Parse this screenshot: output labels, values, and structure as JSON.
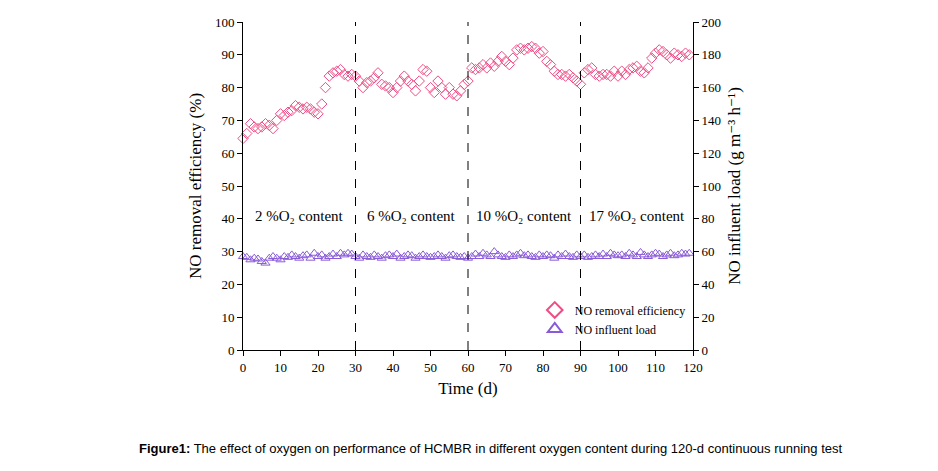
{
  "chart_data": {
    "type": "scatter",
    "caption": {
      "label": "Figure1:",
      "text": "The effect of oxygen on performance of HCMBR in different oxygen content during 120-d continuous running test"
    },
    "x_label": "Time (d)",
    "y_label": "NO removal efficiency (%)",
    "y2_label": "NO influent load (g m⁻³ h⁻¹)",
    "x": [
      0,
      1,
      2,
      3,
      4,
      5,
      6,
      7,
      8,
      9,
      10,
      11,
      12,
      13,
      14,
      15,
      16,
      17,
      18,
      19,
      20,
      21,
      22,
      23,
      24,
      25,
      26,
      27,
      28,
      29,
      30,
      31,
      32,
      33,
      34,
      35,
      36,
      37,
      38,
      39,
      40,
      41,
      42,
      43,
      44,
      45,
      46,
      47,
      48,
      49,
      50,
      51,
      52,
      53,
      54,
      55,
      56,
      57,
      58,
      59,
      60,
      61,
      62,
      63,
      64,
      65,
      66,
      67,
      68,
      69,
      70,
      71,
      72,
      73,
      74,
      75,
      76,
      77,
      78,
      79,
      80,
      81,
      82,
      83,
      84,
      85,
      86,
      87,
      88,
      89,
      90,
      91,
      92,
      93,
      94,
      95,
      96,
      97,
      98,
      99,
      100,
      101,
      102,
      103,
      104,
      105,
      106,
      107,
      108,
      109,
      110,
      111,
      112,
      113,
      114,
      115,
      116,
      117,
      118,
      119
    ],
    "series": [
      {
        "name": "NO removal efficiency",
        "color": "#ee4d86",
        "marker": "diamond-open",
        "axis": "y",
        "values": [
          64.5,
          66,
          69,
          68,
          67.5,
          68,
          69,
          68.5,
          67.5,
          70,
          72,
          71.5,
          72.5,
          73,
          74.5,
          74,
          73.5,
          74,
          73.5,
          72.5,
          72,
          75,
          80,
          83.5,
          84.5,
          85,
          85.5,
          84,
          83.5,
          84,
          83.5,
          82,
          80,
          81.5,
          82,
          83,
          84.5,
          81,
          80.5,
          80,
          78.5,
          80,
          82,
          83.5,
          82,
          81,
          79,
          82,
          85.5,
          85,
          80,
          78.5,
          82,
          80,
          78,
          80,
          78,
          77.5,
          79,
          81,
          82,
          86,
          85.5,
          86,
          87,
          86,
          87.5,
          86.5,
          88,
          89.5,
          88,
          87,
          89,
          91.5,
          92,
          91.5,
          92,
          92.5,
          92,
          90.5,
          91,
          88,
          87,
          85,
          84,
          84,
          83.5,
          84,
          83,
          82,
          81,
          84.5,
          85.5,
          86,
          84,
          83.5,
          84,
          84,
          83.5,
          85,
          83.5,
          85,
          84,
          85.5,
          86,
          86.5,
          85,
          84.5,
          86,
          89,
          90.5,
          91.5,
          91,
          90,
          89,
          90.5,
          90,
          89.5,
          90.5,
          90
        ]
      },
      {
        "name": "NO influent load",
        "color": "#8a5ad8",
        "marker": "triangle-up-open",
        "axis": "y2",
        "values": [
          57,
          56.5,
          55,
          56,
          55.5,
          54,
          53,
          56,
          57,
          56,
          55,
          57,
          56.5,
          58,
          57,
          56,
          57.5,
          58,
          56,
          59,
          57,
          58,
          56,
          57,
          58.5,
          57,
          59,
          58,
          59,
          58.5,
          57,
          56,
          58,
          57,
          56.5,
          58,
          57,
          56,
          57.5,
          58,
          57,
          58.5,
          56,
          57,
          58,
          57.5,
          56,
          57,
          58,
          57,
          56.5,
          57,
          58,
          57,
          56,
          57.5,
          58,
          57,
          56.5,
          57,
          56,
          57,
          58.5,
          57,
          59,
          58,
          57,
          60,
          58,
          57,
          56.5,
          58,
          57,
          58,
          59,
          57.5,
          58,
          57,
          56.5,
          58,
          57,
          58,
          57.5,
          56,
          58,
          57,
          58.5,
          57,
          56.5,
          58,
          57,
          58,
          56.5,
          57,
          58,
          57,
          58.5,
          57,
          59,
          58,
          57.5,
          58,
          57,
          59,
          58,
          57,
          59.5,
          58,
          57,
          58,
          59,
          58.5,
          57,
          58,
          59,
          57.5,
          58,
          59,
          58.5,
          59
        ]
      }
    ],
    "xlim": [
      0,
      120
    ],
    "xticks": [
      0,
      10,
      20,
      30,
      40,
      50,
      60,
      70,
      80,
      90,
      100,
      110,
      120
    ],
    "ylim": [
      0,
      100
    ],
    "yticks": [
      0,
      10,
      20,
      30,
      40,
      50,
      60,
      70,
      80,
      90,
      100
    ],
    "y2lim": [
      0,
      200
    ],
    "y2ticks": [
      0,
      20,
      40,
      60,
      80,
      100,
      120,
      140,
      160,
      180,
      200
    ],
    "vlines": [
      30,
      60,
      90
    ],
    "annotations": [
      {
        "text": "2 %O₂ content",
        "x": 15,
        "y": 41
      },
      {
        "text": "6 %O₂ content",
        "x": 45,
        "y": 41
      },
      {
        "text": "10 %O₂ content",
        "x": 75,
        "y": 41
      },
      {
        "text": "17 %O₂ content",
        "x": 105,
        "y": 41
      }
    ],
    "grid": false,
    "legend": "bottom right"
  }
}
